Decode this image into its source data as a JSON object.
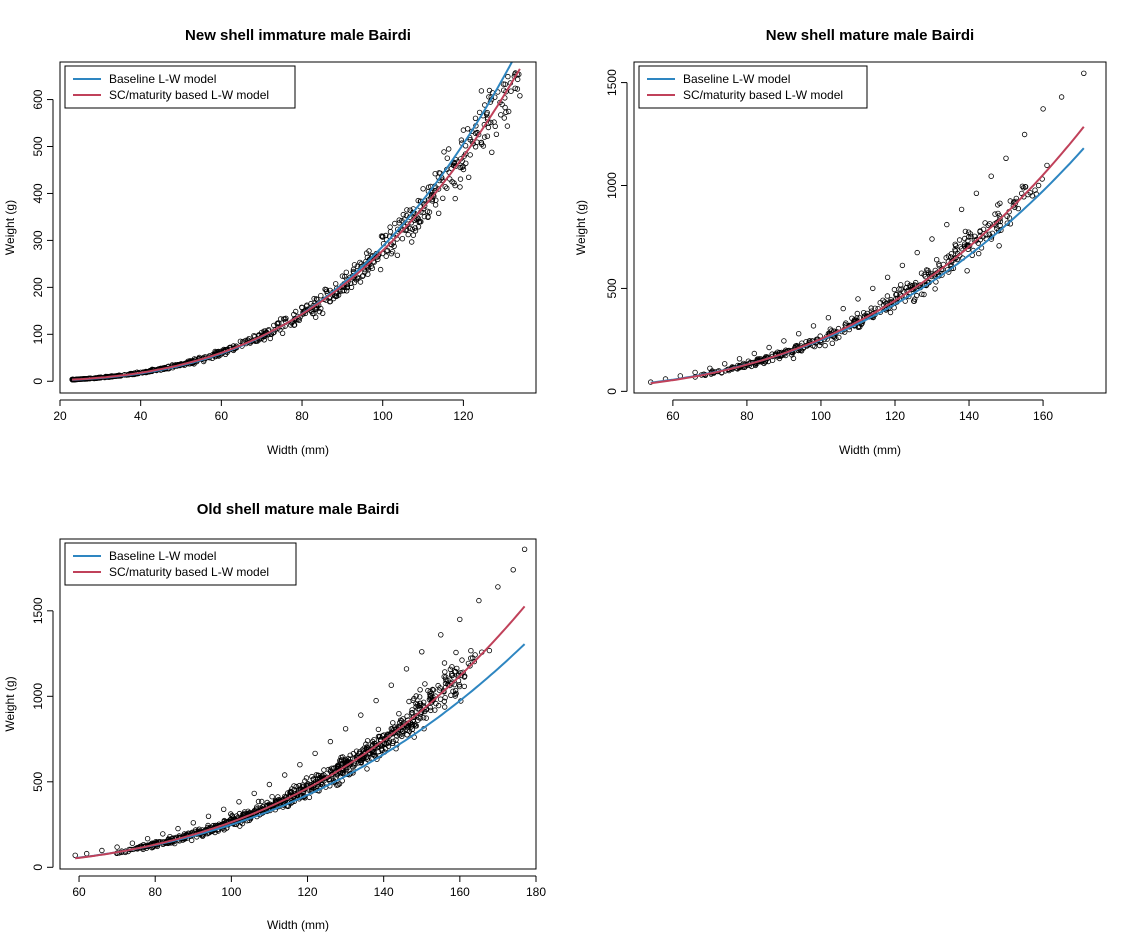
{
  "chart_data": [
    {
      "type": "scatter",
      "title": "New shell immature male Bairdi",
      "xlabel": "Width (mm)",
      "ylabel": "Weight (g)",
      "xlim": [
        20,
        138
      ],
      "ylim": [
        -25,
        680
      ],
      "xticks": [
        20,
        40,
        60,
        80,
        100,
        120
      ],
      "yticks": [
        0,
        100,
        200,
        300,
        400,
        500,
        600
      ],
      "legend_position": "top-left",
      "grid": false,
      "points_sample": {
        "x": [
          23,
          25,
          27,
          30,
          33,
          36,
          40,
          43,
          46,
          50,
          53,
          56,
          60,
          63,
          66,
          70,
          73,
          76,
          80,
          83,
          86,
          90,
          93,
          96,
          100,
          103,
          106,
          110,
          113,
          116,
          120,
          123,
          127,
          130,
          134
        ],
        "y": [
          4,
          5,
          6,
          8,
          11,
          14,
          19,
          24,
          29,
          37,
          44,
          52,
          64,
          75,
          87,
          104,
          119,
          134,
          157,
          176,
          195,
          224,
          248,
          273,
          309,
          336,
          365,
          410,
          442,
          475,
          535,
          560,
          600,
          620,
          608
        ]
      },
      "series": [
        {
          "name": "Baseline L-W model",
          "color": "#2E86C1",
          "model": {
            "a": 0.0001813,
            "b": 3.1
          }
        },
        {
          "name": "SC/maturity based L-W model",
          "color": "#C0415A",
          "model": {
            "a": 0.000305,
            "b": 2.98
          }
        }
      ]
    },
    {
      "type": "scatter",
      "title": "New shell mature male Bairdi",
      "xlabel": "Width (mm)",
      "ylabel": "Weight (g)",
      "xlim": [
        49.5,
        177
      ],
      "ylim": [
        -8,
        1600
      ],
      "xticks": [
        60,
        80,
        100,
        120,
        140,
        160
      ],
      "yticks": [
        0,
        500,
        1000,
        1500
      ],
      "legend_position": "top-left",
      "grid": false,
      "points_sample": {
        "x": [
          54,
          58,
          62,
          66,
          70,
          74,
          78,
          82,
          86,
          90,
          94,
          98,
          102,
          106,
          110,
          114,
          118,
          122,
          126,
          130,
          134,
          138,
          142,
          146,
          150,
          155,
          160,
          165,
          171
        ],
        "y": [
          45,
          60,
          75,
          92,
          112,
          134,
          158,
          184,
          213,
          245,
          280,
          318,
          358,
          402,
          449,
          500,
          554,
          612,
          674,
          740,
          810,
          884,
          962,
          1045,
          1132,
          1248,
          1372,
          1430,
          1545
        ]
      },
      "series": [
        {
          "name": "Baseline L-W model",
          "color": "#2E86C1",
          "model": {
            "a": 0.000395,
            "b": 2.9
          }
        },
        {
          "name": "SC/maturity based L-W model",
          "color": "#C0415A",
          "model": {
            "a": 0.000232,
            "b": 3.02
          }
        }
      ]
    },
    {
      "type": "scatter",
      "title": "Old shell mature male Bairdi",
      "xlabel": "Width (mm)",
      "ylabel": "Weight (g)",
      "xlim": [
        55,
        180
      ],
      "ylim": [
        -10,
        1920
      ],
      "xticks": [
        60,
        80,
        100,
        120,
        140,
        160,
        180
      ],
      "yticks": [
        0,
        500,
        1000,
        1500
      ],
      "legend_position": "top-left",
      "grid": false,
      "points_sample": {
        "x": [
          59,
          62,
          66,
          70,
          74,
          78,
          82,
          86,
          90,
          94,
          98,
          102,
          106,
          110,
          114,
          118,
          122,
          126,
          130,
          134,
          138,
          142,
          146,
          150,
          155,
          160,
          165,
          170,
          174,
          177
        ],
        "y": [
          70,
          80,
          98,
          118,
          141,
          167,
          195,
          226,
          260,
          298,
          339,
          383,
          432,
          484,
          540,
          600,
          666,
          735,
          810,
          890,
          975,
          1065,
          1160,
          1260,
          1360,
          1450,
          1560,
          1640,
          1740,
          1860
        ]
      },
      "series": [
        {
          "name": "Baseline L-W model",
          "color": "#2E86C1",
          "model": {
            "a": 0.000395,
            "b": 2.9
          }
        },
        {
          "name": "SC/maturity based L-W model",
          "color": "#C0415A",
          "model": {
            "a": 0.0001915,
            "b": 3.07
          }
        }
      ]
    }
  ]
}
